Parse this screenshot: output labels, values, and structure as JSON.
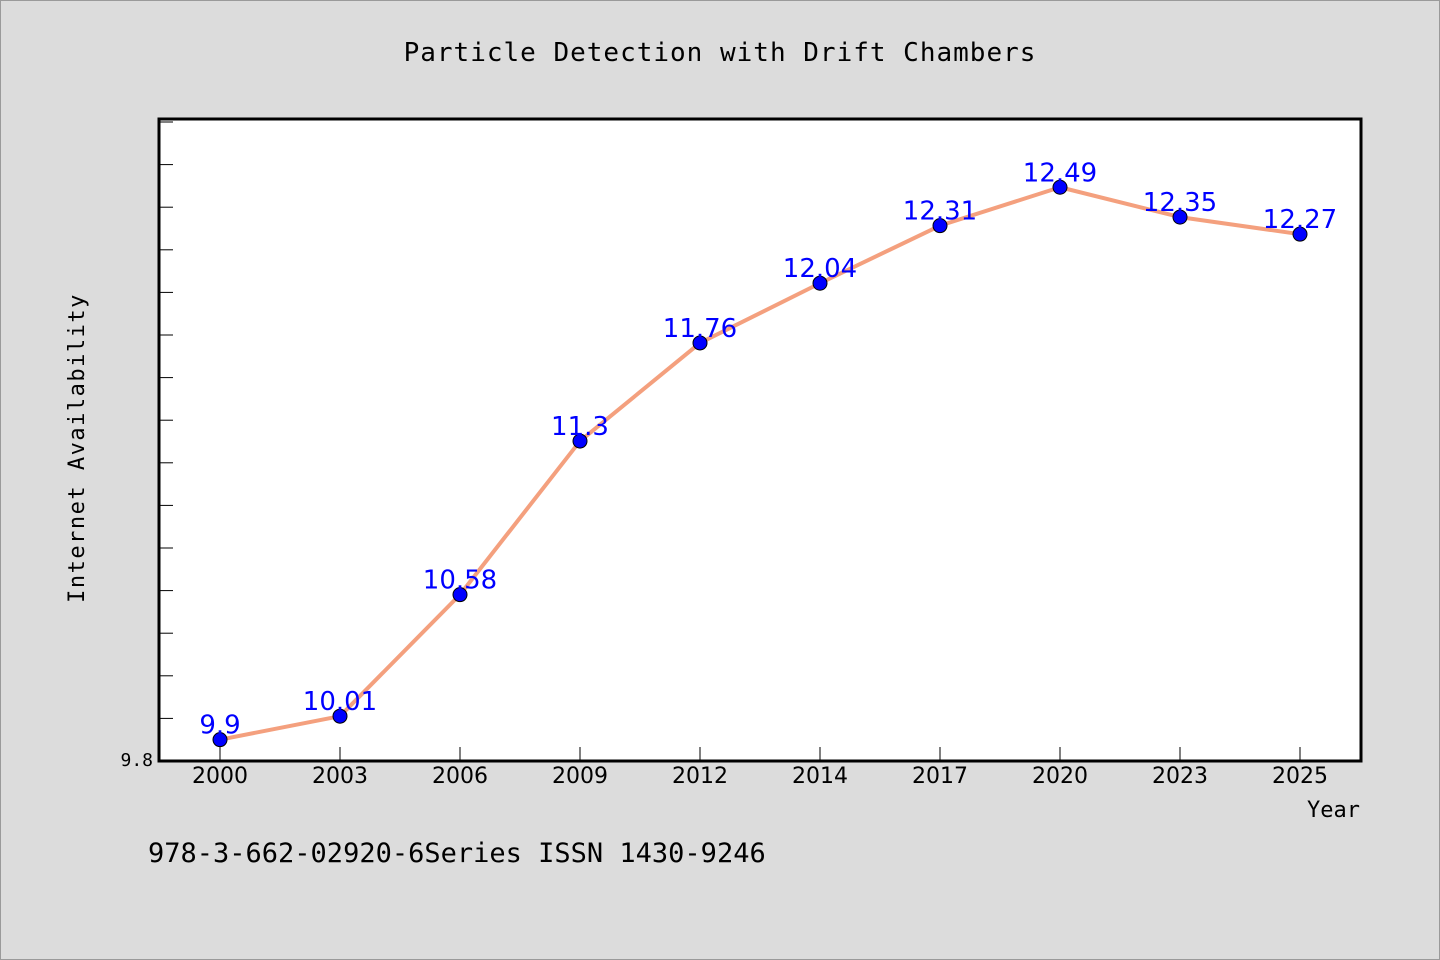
{
  "chart_data": {
    "type": "line",
    "title": "Particle Detection with Drift Chambers",
    "xlabel": "Year",
    "ylabel": "Internet Availability",
    "categories": [
      "2000",
      "2003",
      "2006",
      "2009",
      "2012",
      "2014",
      "2017",
      "2020",
      "2023",
      "2025"
    ],
    "series": [
      {
        "values": [
          9.9,
          10.01,
          10.58,
          11.3,
          11.76,
          12.04,
          12.31,
          12.49,
          12.35,
          12.27
        ],
        "line_color": "#f4a07e",
        "marker_color": "#0000ff"
      }
    ],
    "data_labels": [
      "9.9",
      "10.01",
      "10.58",
      "11.3",
      "11.76",
      "12.04",
      "12.31",
      "12.49",
      "12.35",
      "12.27"
    ],
    "yaxis_visible_tick_label": "9.8",
    "ylim": [
      9.8,
      12.81
    ],
    "grid": false,
    "legend": "none",
    "data_label_color": "#0000ff"
  },
  "footer": {
    "text": "978-3-662-02920-6Series ISSN 1430-9246"
  },
  "colors": {
    "background": "#dcdcdc",
    "plot_background": "#ffffff",
    "axis": "#000000"
  }
}
